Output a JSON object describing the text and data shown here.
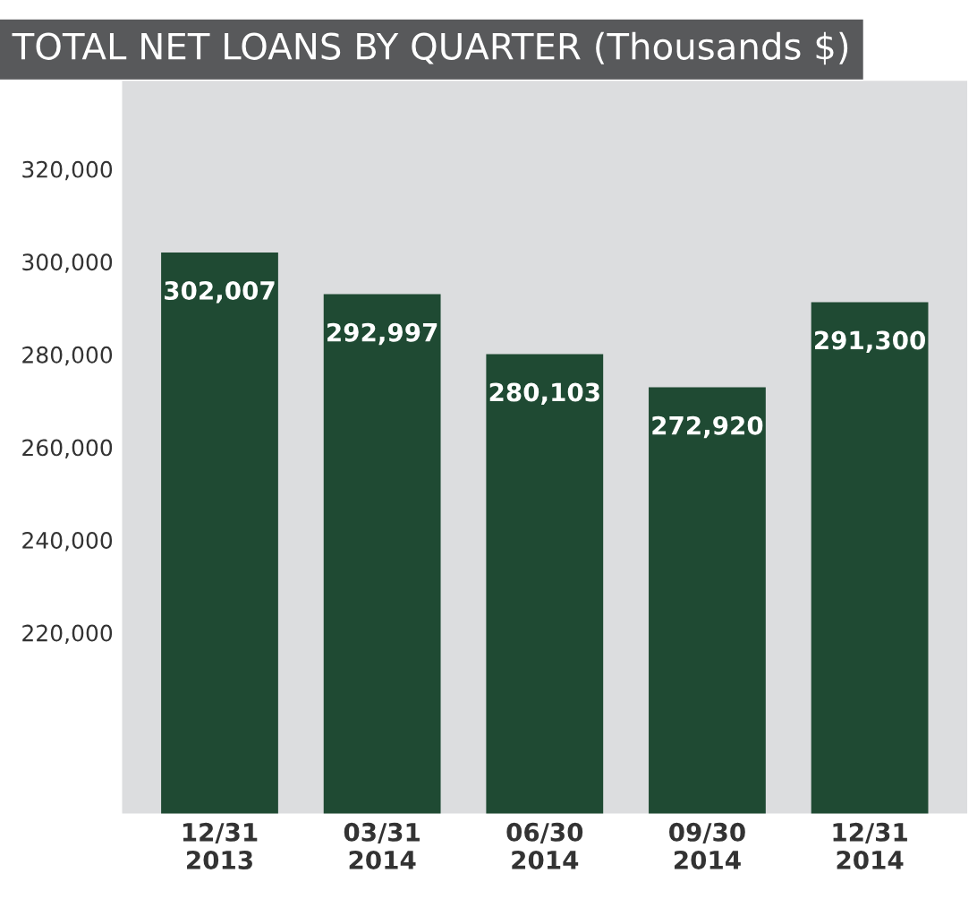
{
  "chart_data": {
    "type": "bar",
    "title": "TOTAL NET LOANS BY QUARTER (Thousands $)",
    "categories": [
      "12/31\n2013",
      "03/31\n2014",
      "06/30\n2014",
      "09/30\n2014",
      "12/31\n2014"
    ],
    "values": [
      302007,
      292997,
      280103,
      272920,
      291300
    ],
    "color": "#1f4a33",
    "ylim": [
      181000,
      339000
    ],
    "yticks": [
      {
        "value": 220000,
        "label": "220,000"
      },
      {
        "value": 240000,
        "label": "240,000"
      },
      {
        "value": 260000,
        "label": "260,000"
      },
      {
        "value": 280000,
        "label": "280,000"
      },
      {
        "value": 300000,
        "label": "300,000"
      },
      {
        "value": 320000,
        "label": "320,000"
      }
    ],
    "value_labels": [
      "302,007",
      "292,997",
      "280,103",
      "272,920",
      "291,300"
    ],
    "grid": false,
    "legend": false
  }
}
